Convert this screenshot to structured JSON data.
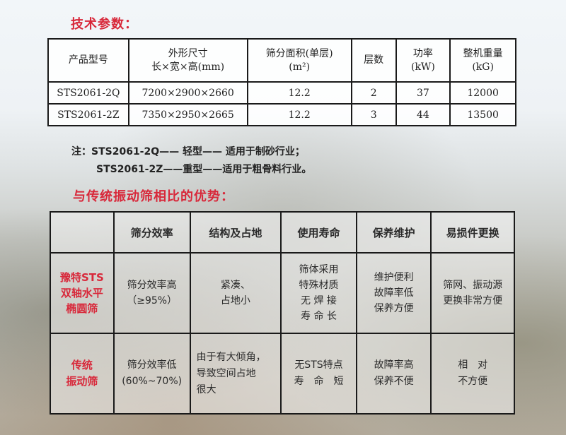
{
  "spec_title": "技术参数：",
  "spec_table": {
    "headers": [
      "产品型号",
      "外形尺寸\n长×宽×高(mm)",
      "筛分面积(单层)\n(m²)",
      "层数",
      "功率\n(kW)",
      "整机重量\n(kG)"
    ],
    "rows": [
      [
        "STS2061-2Q",
        "7200×2900×2660",
        "12.2",
        "2",
        "37",
        "12000"
      ],
      [
        "STS2061-2Z",
        "7350×2950×2665",
        "12.2",
        "3",
        "44",
        "13500"
      ]
    ]
  },
  "notes": [
    "注：STS2061-2Q—— 轻型—— 适用于制砂行业；",
    "STS2061-2Z——重型——适用于粗骨料行业。"
  ],
  "adv_title": "与传统振动筛相比的优势：",
  "adv_table": {
    "headers": [
      "",
      "筛分效率",
      "结构及占地",
      "使用寿命",
      "保养维护",
      "易损件更换"
    ],
    "rows": [
      {
        "label": "豫特STS\n双轴水平\n椭圆筛",
        "cells": [
          "筛分效率高\n（≥95%）",
          "紧凑、\n占地小",
          "筛体采用\n特殊材质\n无 焊 接\n寿 命 长",
          "维护便利\n故障率低\n保养方便",
          "筛网、振动源\n更换非常方便"
        ]
      },
      {
        "label": "传统\n振动筛",
        "cells": [
          "筛分效率低\n(60%~70%)",
          "由于有大倾角，\n导致空间占地\n很大",
          "无STS特点\n寿　命　短",
          "故障率高\n保养不便",
          "相　对\n不方便"
        ]
      }
    ]
  },
  "colors": {
    "accent": "#d8283a",
    "border": "#1a1a1a"
  }
}
